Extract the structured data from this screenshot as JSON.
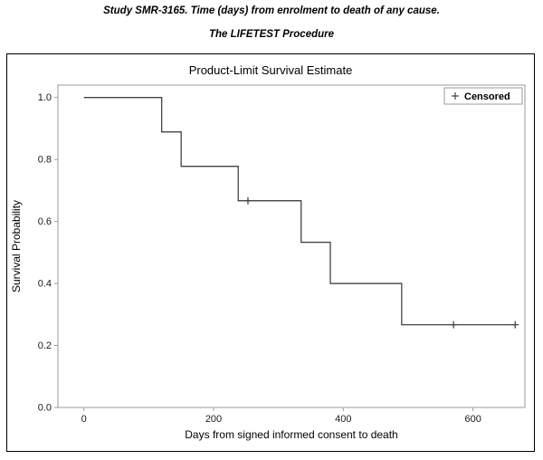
{
  "header": {
    "study_title": "Study SMR-3165. Time (days) from enrolment to death of any cause.",
    "procedure_title": "The LIFETEST Procedure"
  },
  "chart_data": {
    "type": "line",
    "subtype": "kaplan-meier-step",
    "title": "Product-Limit Survival Estimate",
    "xlabel": "Days from signed informed consent to death",
    "ylabel": "Survival Probability",
    "xlim": [
      -40,
      680
    ],
    "ylim": [
      0,
      1.04
    ],
    "xticks": [
      0,
      200,
      400,
      600
    ],
    "yticks": [
      "0.0",
      "0.2",
      "0.4",
      "0.6",
      "0.8",
      "1.0"
    ],
    "grid": false,
    "legend": {
      "marker": "+",
      "label": "Censored",
      "position": "top-right"
    },
    "colors": {
      "curve": "#444444",
      "axis": "#9b9b9b",
      "tick_text": "#1a1a1a"
    },
    "series": [
      {
        "name": "Survival",
        "color": "#444444",
        "step_points": [
          {
            "x": 0,
            "y": 1.0
          },
          {
            "x": 120,
            "y": 0.889
          },
          {
            "x": 150,
            "y": 0.778
          },
          {
            "x": 238,
            "y": 0.667
          },
          {
            "x": 335,
            "y": 0.533
          },
          {
            "x": 380,
            "y": 0.4
          },
          {
            "x": 490,
            "y": 0.267
          }
        ],
        "end_x": 665,
        "censored_points": [
          {
            "x": 253,
            "y": 0.667
          },
          {
            "x": 570,
            "y": 0.267
          },
          {
            "x": 665,
            "y": 0.267
          }
        ]
      }
    ]
  }
}
